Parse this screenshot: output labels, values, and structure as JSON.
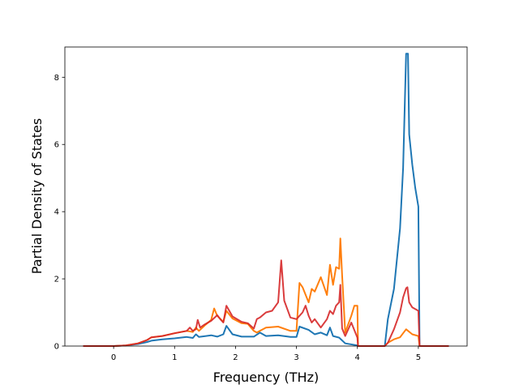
{
  "chart_data": {
    "type": "line",
    "title": "",
    "xlabel": "Frequency (THz)",
    "ylabel": "Partial Density of States",
    "xlim": [
      -0.8,
      5.8
    ],
    "ylim": [
      0,
      8.9
    ],
    "xticks": [
      0,
      1,
      2,
      3,
      4,
      5
    ],
    "yticks": [
      0,
      2,
      4,
      6,
      8
    ],
    "grid": false,
    "legend": "none",
    "series": [
      {
        "color": "#1f77b4",
        "x": [
          -0.5,
          0,
          0.2,
          0.4,
          0.55,
          0.62,
          0.8,
          1.0,
          1.2,
          1.3,
          1.35,
          1.4,
          1.6,
          1.7,
          1.8,
          1.85,
          1.95,
          2.1,
          2.3,
          2.4,
          2.5,
          2.7,
          2.9,
          3.0,
          3.05,
          3.2,
          3.3,
          3.4,
          3.5,
          3.55,
          3.6,
          3.7,
          3.8,
          4.0,
          4.01,
          4.45,
          4.5,
          4.6,
          4.7,
          4.75,
          4.8,
          4.83,
          4.85,
          4.9,
          4.95,
          5.0,
          5.02,
          5.5
        ],
        "y": [
          0,
          0,
          0.02,
          0.06,
          0.12,
          0.16,
          0.2,
          0.23,
          0.27,
          0.24,
          0.35,
          0.27,
          0.32,
          0.28,
          0.35,
          0.6,
          0.35,
          0.28,
          0.28,
          0.4,
          0.3,
          0.32,
          0.27,
          0.27,
          0.58,
          0.48,
          0.35,
          0.4,
          0.32,
          0.55,
          0.3,
          0.25,
          0.08,
          0.02,
          0,
          0,
          0.8,
          1.7,
          3.5,
          5.3,
          8.7,
          8.7,
          6.3,
          5.4,
          4.7,
          4.15,
          0,
          0
        ]
      },
      {
        "color": "#ff7f0e",
        "x": [
          -0.5,
          0,
          0.2,
          0.4,
          0.55,
          0.62,
          0.8,
          1.0,
          1.2,
          1.3,
          1.35,
          1.4,
          1.5,
          1.6,
          1.65,
          1.7,
          1.8,
          1.85,
          1.95,
          2.1,
          2.2,
          2.3,
          2.35,
          2.4,
          2.5,
          2.7,
          2.9,
          3.0,
          3.05,
          3.1,
          3.2,
          3.25,
          3.3,
          3.4,
          3.5,
          3.55,
          3.6,
          3.65,
          3.7,
          3.72,
          3.75,
          3.8,
          3.9,
          3.95,
          4.0,
          4.01,
          4.45,
          4.5,
          4.6,
          4.7,
          4.8,
          4.9,
          5.0,
          5.02,
          5.5
        ],
        "y": [
          0,
          0,
          0.02,
          0.08,
          0.18,
          0.26,
          0.3,
          0.38,
          0.45,
          0.42,
          0.55,
          0.45,
          0.62,
          0.78,
          1.12,
          0.9,
          0.72,
          1.05,
          0.82,
          0.68,
          0.66,
          0.45,
          0.4,
          0.45,
          0.55,
          0.58,
          0.45,
          0.45,
          1.88,
          1.75,
          1.3,
          1.7,
          1.62,
          2.05,
          1.52,
          2.42,
          1.82,
          2.35,
          2.3,
          3.2,
          2.1,
          0.4,
          0.9,
          1.2,
          1.2,
          0,
          0,
          0.1,
          0.2,
          0.26,
          0.5,
          0.35,
          0.3,
          0,
          0
        ]
      },
      {
        "color": "#d62728",
        "opacity": 0.9,
        "x": [
          -0.5,
          0,
          0.2,
          0.4,
          0.55,
          0.62,
          0.8,
          1.0,
          1.2,
          1.25,
          1.3,
          1.35,
          1.38,
          1.42,
          1.5,
          1.6,
          1.7,
          1.75,
          1.8,
          1.85,
          1.95,
          2.1,
          2.2,
          2.3,
          2.35,
          2.4,
          2.5,
          2.6,
          2.7,
          2.75,
          2.8,
          2.9,
          3.0,
          3.1,
          3.15,
          3.2,
          3.25,
          3.3,
          3.4,
          3.5,
          3.55,
          3.6,
          3.65,
          3.7,
          3.72,
          3.75,
          3.8,
          3.9,
          4.0,
          4.01,
          4.45,
          4.5,
          4.6,
          4.7,
          4.75,
          4.8,
          4.82,
          4.85,
          4.9,
          5.0,
          5.02,
          5.5
        ],
        "y": [
          0,
          0,
          0.02,
          0.08,
          0.18,
          0.26,
          0.3,
          0.38,
          0.45,
          0.55,
          0.45,
          0.5,
          0.78,
          0.55,
          0.65,
          0.75,
          0.92,
          0.8,
          0.7,
          1.2,
          0.88,
          0.72,
          0.68,
          0.52,
          0.8,
          0.85,
          1.0,
          1.05,
          1.3,
          2.55,
          1.35,
          0.85,
          0.8,
          1.0,
          1.2,
          0.9,
          0.7,
          0.8,
          0.55,
          0.8,
          1.05,
          0.95,
          1.2,
          1.3,
          1.82,
          0.52,
          0.3,
          0.7,
          0.25,
          0,
          0,
          0.1,
          0.5,
          1.0,
          1.45,
          1.72,
          1.75,
          1.3,
          1.15,
          1.05,
          0,
          0
        ]
      }
    ]
  }
}
